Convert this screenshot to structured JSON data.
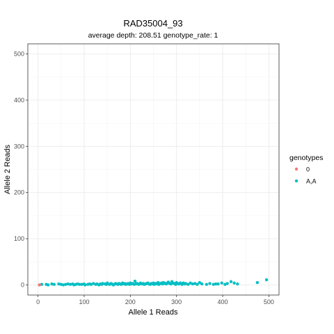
{
  "chart_data": {
    "type": "scatter",
    "title": "RAD35004_93",
    "subtitle": "average depth:  208.51  genotype_rate:  1",
    "xlabel": "Allele 1 Reads",
    "ylabel": "Allele 2 Reads",
    "xlim": [
      -22,
      522
    ],
    "ylim": [
      -22,
      522
    ],
    "x_ticks": [
      0,
      100,
      200,
      300,
      400,
      500
    ],
    "y_ticks": [
      0,
      100,
      200,
      300,
      400,
      500
    ],
    "grid": true,
    "legend": {
      "title": "genotypes",
      "position": "right",
      "entries": [
        {
          "label": "0",
          "color": "#F8766D"
        },
        {
          "label": "A,A",
          "color": "#00BFC4"
        }
      ]
    },
    "series": [
      {
        "name": "0",
        "color": "#F8766D",
        "points": [
          [
            3,
            0
          ]
        ]
      },
      {
        "name": "A,A",
        "color": "#00BFC4",
        "points": [
          [
            8,
            1
          ],
          [
            18,
            1
          ],
          [
            22,
            0
          ],
          [
            30,
            2
          ],
          [
            35,
            1
          ],
          [
            45,
            2
          ],
          [
            50,
            1
          ],
          [
            55,
            0
          ],
          [
            60,
            1
          ],
          [
            65,
            2
          ],
          [
            70,
            1
          ],
          [
            75,
            2
          ],
          [
            78,
            0
          ],
          [
            82,
            1
          ],
          [
            86,
            2
          ],
          [
            90,
            1
          ],
          [
            95,
            1
          ],
          [
            100,
            2
          ],
          [
            102,
            0
          ],
          [
            108,
            1
          ],
          [
            112,
            2
          ],
          [
            115,
            1
          ],
          [
            120,
            3
          ],
          [
            125,
            1
          ],
          [
            128,
            2
          ],
          [
            132,
            0
          ],
          [
            135,
            2
          ],
          [
            138,
            1
          ],
          [
            140,
            3
          ],
          [
            145,
            2
          ],
          [
            148,
            1
          ],
          [
            150,
            4
          ],
          [
            152,
            2
          ],
          [
            155,
            1
          ],
          [
            158,
            3
          ],
          [
            160,
            2
          ],
          [
            163,
            0
          ],
          [
            165,
            1
          ],
          [
            168,
            3
          ],
          [
            170,
            2
          ],
          [
            173,
            1
          ],
          [
            175,
            3
          ],
          [
            178,
            2
          ],
          [
            180,
            1
          ],
          [
            183,
            4
          ],
          [
            185,
            2
          ],
          [
            188,
            3
          ],
          [
            190,
            1
          ],
          [
            193,
            2
          ],
          [
            195,
            3
          ],
          [
            198,
            1
          ],
          [
            200,
            4
          ],
          [
            202,
            2
          ],
          [
            205,
            3
          ],
          [
            208,
            1
          ],
          [
            210,
            8
          ],
          [
            212,
            2
          ],
          [
            215,
            3
          ],
          [
            218,
            1
          ],
          [
            220,
            2
          ],
          [
            222,
            4
          ],
          [
            225,
            2
          ],
          [
            228,
            3
          ],
          [
            230,
            1
          ],
          [
            233,
            2
          ],
          [
            235,
            3
          ],
          [
            238,
            4
          ],
          [
            240,
            2
          ],
          [
            243,
            1
          ],
          [
            245,
            3
          ],
          [
            248,
            2
          ],
          [
            250,
            4
          ],
          [
            252,
            1
          ],
          [
            255,
            3
          ],
          [
            258,
            2
          ],
          [
            260,
            5
          ],
          [
            262,
            1
          ],
          [
            265,
            3
          ],
          [
            268,
            4
          ],
          [
            270,
            2
          ],
          [
            272,
            5
          ],
          [
            275,
            3
          ],
          [
            278,
            2
          ],
          [
            280,
            4
          ],
          [
            282,
            6
          ],
          [
            285,
            3
          ],
          [
            288,
            2
          ],
          [
            290,
            7
          ],
          [
            292,
            4
          ],
          [
            295,
            3
          ],
          [
            298,
            1
          ],
          [
            300,
            5
          ],
          [
            302,
            3
          ],
          [
            305,
            2
          ],
          [
            308,
            4
          ],
          [
            310,
            3
          ],
          [
            312,
            1
          ],
          [
            315,
            4
          ],
          [
            318,
            2
          ],
          [
            320,
            3
          ],
          [
            325,
            1
          ],
          [
            330,
            4
          ],
          [
            335,
            2
          ],
          [
            340,
            3
          ],
          [
            345,
            1
          ],
          [
            350,
            5
          ],
          [
            355,
            2
          ],
          [
            365,
            1
          ],
          [
            372,
            3
          ],
          [
            380,
            1
          ],
          [
            385,
            2
          ],
          [
            390,
            2
          ],
          [
            398,
            4
          ],
          [
            405,
            1
          ],
          [
            410,
            3
          ],
          [
            418,
            7
          ],
          [
            425,
            4
          ],
          [
            432,
            2
          ],
          [
            475,
            5
          ],
          [
            495,
            11
          ]
        ]
      }
    ]
  }
}
